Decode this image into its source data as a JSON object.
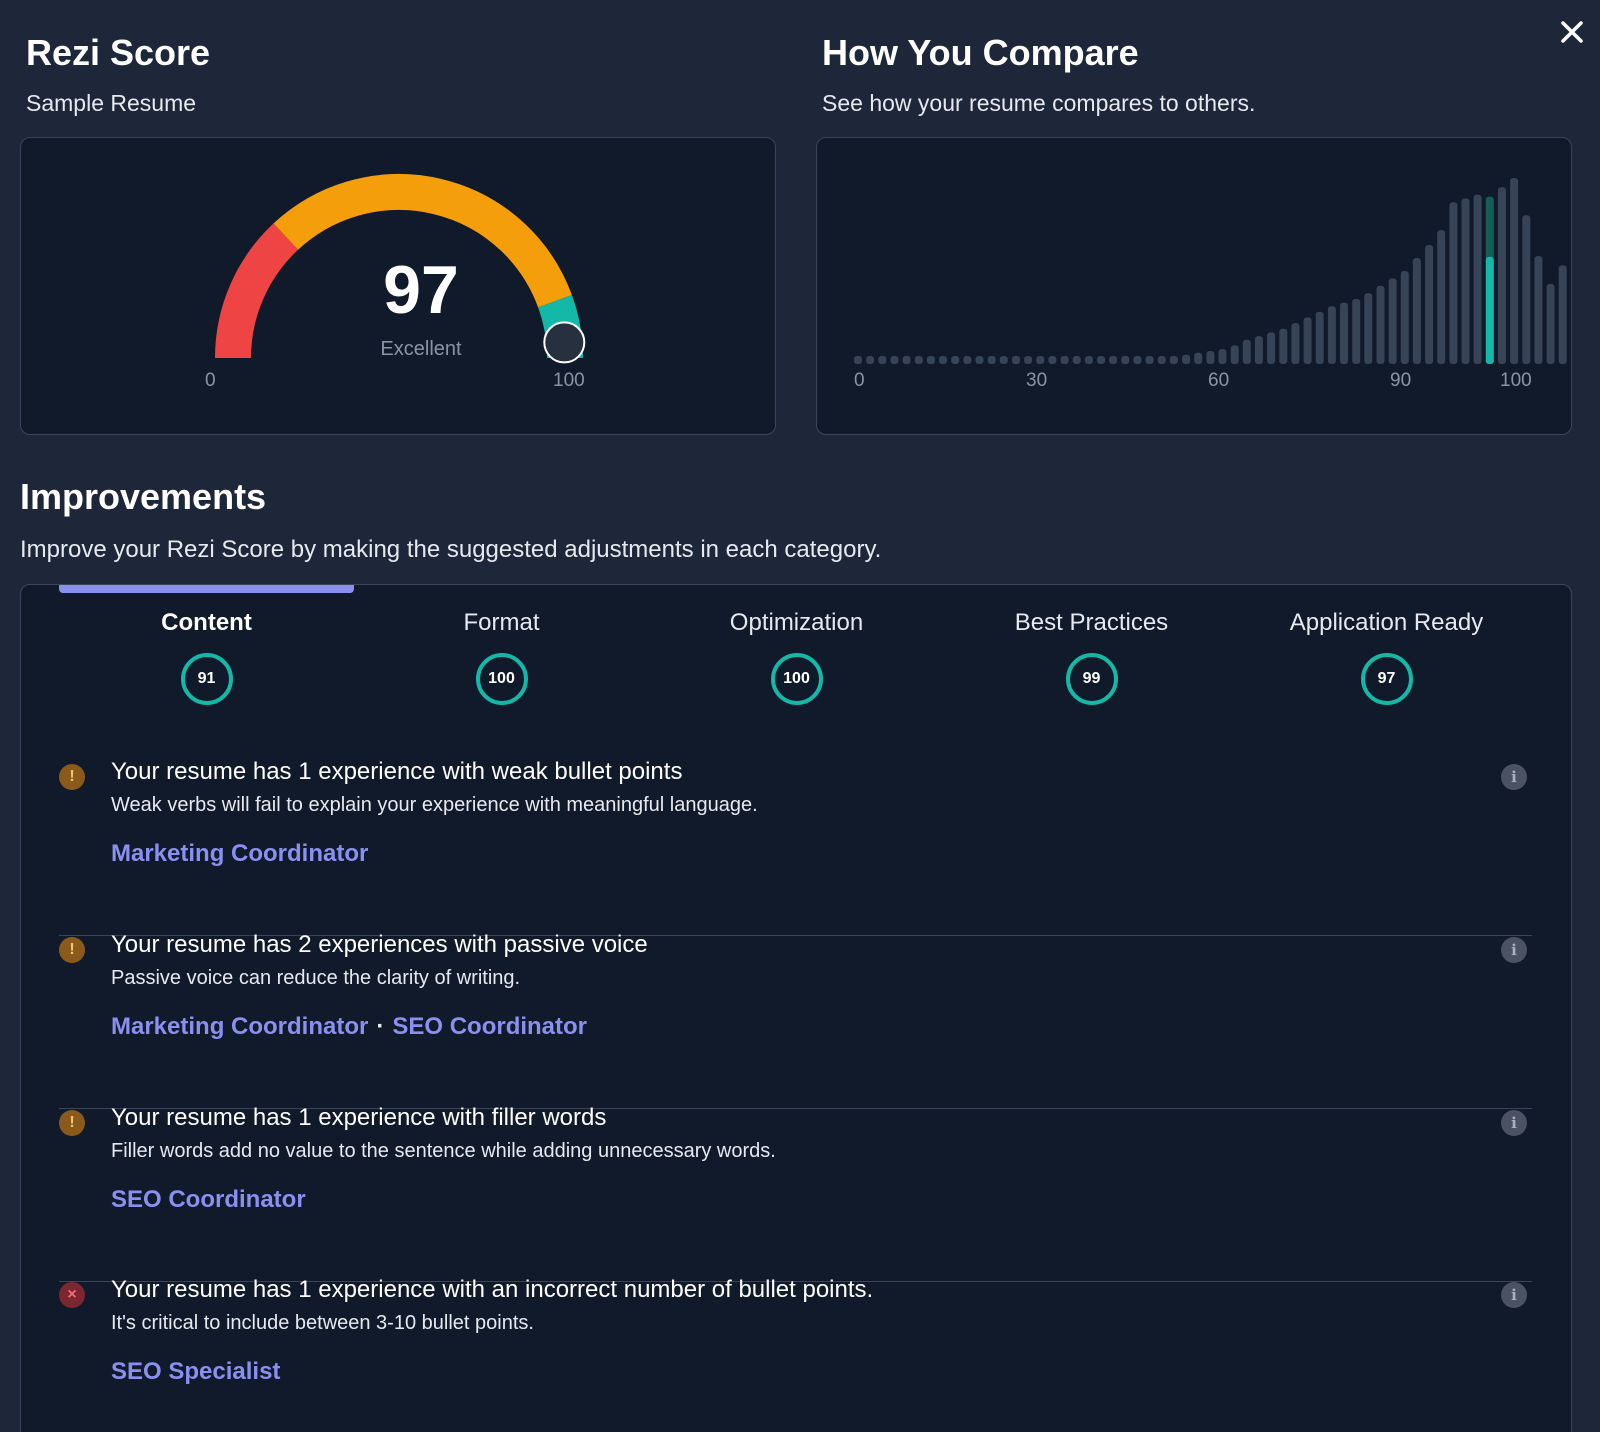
{
  "rezi": {
    "title": "Rezi Score",
    "subtitle": "Sample Resume",
    "score": "97",
    "score_value": 97,
    "rating": "Excellent",
    "min_label": "0",
    "max_label": "100",
    "colors": {
      "low": "#ef4444",
      "mid": "#f59e0b",
      "high": "#14b8a6"
    }
  },
  "compare": {
    "title": "How You Compare",
    "subtitle": "See how your resume compares to others."
  },
  "chart_data": {
    "type": "bar",
    "title": "How You Compare",
    "x_ticks": [
      "0",
      "30",
      "60",
      "90",
      "100"
    ],
    "x_range": [
      0,
      100
    ],
    "highlight_index": 52,
    "highlight_value": 97,
    "values": [
      4,
      4,
      4,
      4,
      4,
      4,
      4,
      4,
      4,
      4,
      4,
      4,
      4,
      4,
      4,
      4,
      4,
      4,
      4,
      4,
      4,
      4,
      4,
      4,
      4,
      4,
      4,
      5,
      6,
      7,
      8,
      10,
      13,
      15,
      17,
      19,
      22,
      25,
      28,
      31,
      33,
      35,
      38,
      42,
      46,
      50,
      57,
      64,
      72,
      87,
      89,
      91,
      90,
      95,
      100,
      80,
      58,
      43,
      53
    ],
    "colors": {
      "bar": "#374357",
      "highlight_top": "#155e58",
      "highlight_fill": "#14b8a6"
    }
  },
  "improvements": {
    "title": "Improvements",
    "subtitle": "Improve your Rezi Score by making the suggested adjustments in each category.",
    "tabs": [
      {
        "label": "Content",
        "score": "91"
      },
      {
        "label": "Format",
        "score": "100"
      },
      {
        "label": "Optimization",
        "score": "100"
      },
      {
        "label": "Best Practices",
        "score": "99"
      },
      {
        "label": "Application Ready",
        "score": "97"
      }
    ],
    "issues": [
      {
        "title": "Your resume has 1 experience with weak bullet points",
        "desc": "Weak verbs will fail to explain your experience with meaningful language.",
        "links": [
          "Marketing Coordinator"
        ]
      },
      {
        "title": "Your resume has 2 experiences with passive voice",
        "desc": "Passive voice can reduce the clarity of writing.",
        "links": [
          "Marketing Coordinator",
          "SEO Coordinator"
        ],
        "separator": "·"
      },
      {
        "title": "Your resume has 1 experience with filler words",
        "desc": "Filler words add no value to the sentence while adding unnecessary words.",
        "links": [
          "SEO Coordinator"
        ]
      },
      {
        "title": "Your resume has 1 experience with an incorrect number of bullet points.",
        "desc": "It's critical to include between 3-10 bullet points.",
        "links": [
          "SEO Specialist"
        ]
      }
    ],
    "icons": {
      "warn": "!",
      "error": "×",
      "info": "i"
    }
  }
}
